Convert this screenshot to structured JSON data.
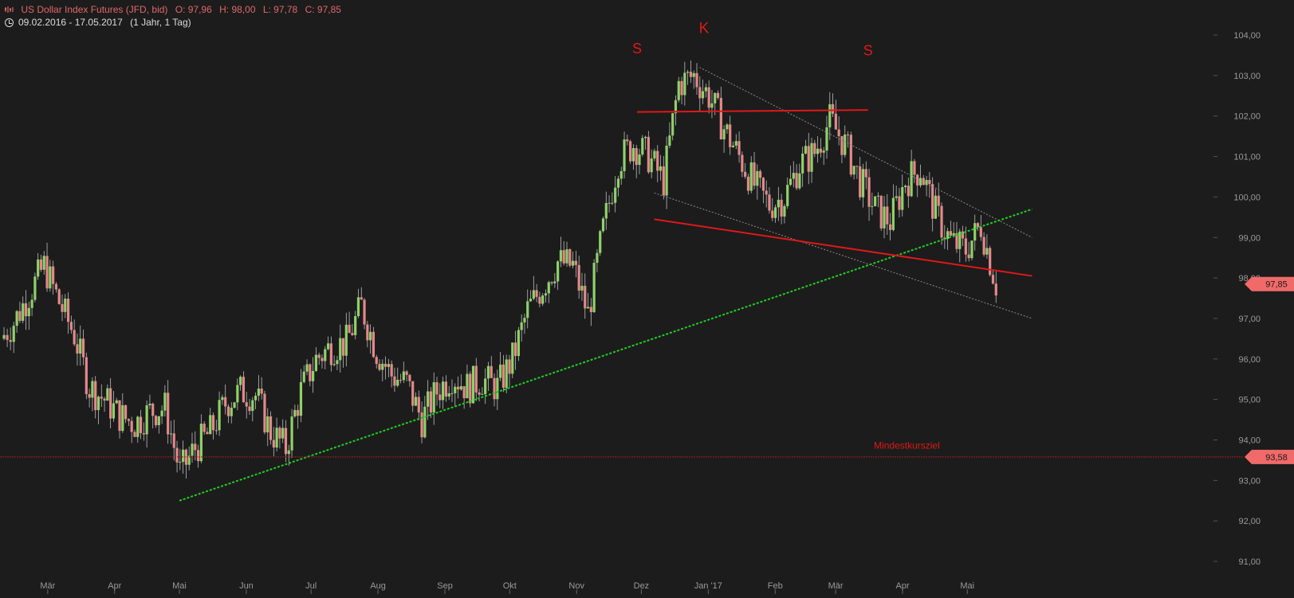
{
  "header": {
    "instrument": "US Dollar Index Futures (JFD, bid)",
    "ohlc": {
      "open": "O: 97,96",
      "high": "H: 98,00",
      "low": "L: 97,78",
      "close": "C: 97,85"
    },
    "date_range": "09.02.2016 - 17.05.2017",
    "period": "(1 Jahr, 1 Tag)"
  },
  "colors": {
    "background": "#1c1c1c",
    "up": "#8fd16a",
    "down": "#e38989",
    "wick": "#bdbdbd",
    "axis_text": "#9a9a9a",
    "red_line": "#e01818",
    "green_trend": "#22cc22",
    "grey_channel": "#8a8a8a"
  },
  "chart_data": {
    "type": "candlestick",
    "title": "US Dollar Index Futures (JFD, bid)",
    "ylim": [
      91,
      104.2
    ],
    "y_ticks": [
      "91,00",
      "92,00",
      "93,00",
      "94,00",
      "95,00",
      "96,00",
      "97,00",
      "98,00",
      "99,00",
      "100,00",
      "101,00",
      "102,00",
      "103,00",
      "104,00"
    ],
    "x_months": [
      {
        "label": "Mär",
        "date": "2016-03-01"
      },
      {
        "label": "Apr",
        "date": "2016-04-01"
      },
      {
        "label": "Mai",
        "date": "2016-05-01"
      },
      {
        "label": "Jun",
        "date": "2016-06-01"
      },
      {
        "label": "Jul",
        "date": "2016-07-01"
      },
      {
        "label": "Aug",
        "date": "2016-08-01"
      },
      {
        "label": "Sep",
        "date": "2016-09-01"
      },
      {
        "label": "Okt",
        "date": "2016-10-01"
      },
      {
        "label": "Nov",
        "date": "2016-11-01"
      },
      {
        "label": "Dez",
        "date": "2016-12-01"
      },
      {
        "label": "Jan '17",
        "date": "2017-01-01"
      },
      {
        "label": "Feb",
        "date": "2017-02-01"
      },
      {
        "label": "Mär",
        "date": "2017-03-01"
      },
      {
        "label": "Apr",
        "date": "2017-04-01"
      },
      {
        "label": "Mai",
        "date": "2017-05-01"
      }
    ],
    "closes": [
      [
        "2016-02-09",
        96.5
      ],
      [
        "2016-02-15",
        96.9
      ],
      [
        "2016-02-22",
        97.6
      ],
      [
        "2016-02-29",
        98.3
      ],
      [
        "2016-03-07",
        97.4
      ],
      [
        "2016-03-14",
        96.6
      ],
      [
        "2016-03-21",
        95.3
      ],
      [
        "2016-03-28",
        95.0
      ],
      [
        "2016-04-04",
        94.6
      ],
      [
        "2016-04-11",
        94.4
      ],
      [
        "2016-04-18",
        94.7
      ],
      [
        "2016-04-25",
        94.8
      ],
      [
        "2016-05-02",
        93.2
      ],
      [
        "2016-05-09",
        93.8
      ],
      [
        "2016-05-16",
        94.2
      ],
      [
        "2016-05-23",
        94.9
      ],
      [
        "2016-05-30",
        95.2
      ],
      [
        "2016-06-06",
        95.1
      ],
      [
        "2016-06-13",
        94.2
      ],
      [
        "2016-06-20",
        93.8
      ],
      [
        "2016-06-27",
        95.2
      ],
      [
        "2016-07-04",
        96.0
      ],
      [
        "2016-07-11",
        96.3
      ],
      [
        "2016-07-18",
        96.4
      ],
      [
        "2016-07-25",
        97.3
      ],
      [
        "2016-08-01",
        96.2
      ],
      [
        "2016-08-08",
        95.6
      ],
      [
        "2016-08-15",
        95.4
      ],
      [
        "2016-08-22",
        94.5
      ],
      [
        "2016-08-29",
        95.2
      ],
      [
        "2016-09-05",
        95.6
      ],
      [
        "2016-09-12",
        95.3
      ],
      [
        "2016-09-19",
        95.5
      ],
      [
        "2016-09-26",
        95.3
      ],
      [
        "2016-10-03",
        96.0
      ],
      [
        "2016-10-10",
        97.2
      ],
      [
        "2016-10-17",
        97.8
      ],
      [
        "2016-10-24",
        98.4
      ],
      [
        "2016-10-31",
        98.3
      ],
      [
        "2016-11-07",
        97.1
      ],
      [
        "2016-11-14",
        99.2
      ],
      [
        "2016-11-21",
        100.9
      ],
      [
        "2016-11-28",
        101.3
      ],
      [
        "2016-12-05",
        101.0
      ],
      [
        "2016-12-12",
        100.4
      ],
      [
        "2016-12-19",
        102.8
      ],
      [
        "2016-12-26",
        103.0
      ],
      [
        "2017-01-02",
        102.5
      ],
      [
        "2017-01-09",
        101.7
      ],
      [
        "2017-01-16",
        101.0
      ],
      [
        "2017-01-23",
        100.3
      ],
      [
        "2017-01-30",
        99.8
      ],
      [
        "2017-02-06",
        100.0
      ],
      [
        "2017-02-13",
        100.8
      ],
      [
        "2017-02-20",
        101.1
      ],
      [
        "2017-02-27",
        101.9
      ],
      [
        "2017-03-06",
        101.3
      ],
      [
        "2017-03-13",
        100.4
      ],
      [
        "2017-03-20",
        99.7
      ],
      [
        "2017-03-27",
        99.4
      ],
      [
        "2017-04-03",
        100.4
      ],
      [
        "2017-04-10",
        100.7
      ],
      [
        "2017-04-17",
        99.6
      ],
      [
        "2017-04-24",
        98.9
      ],
      [
        "2017-05-01",
        98.7
      ],
      [
        "2017-05-08",
        99.3
      ],
      [
        "2017-05-15",
        97.85
      ]
    ],
    "annotations": [
      {
        "label": "S",
        "role": "shoulder-left"
      },
      {
        "label": "K",
        "role": "head"
      },
      {
        "label": "S",
        "role": "shoulder-right"
      },
      {
        "label": "Mindestkursziel",
        "role": "target-label"
      }
    ],
    "price_labels": {
      "current": "97,85",
      "target": "93,58"
    },
    "lines": {
      "neckline": [
        [
          "2016-12-07",
          99.45
        ],
        [
          "2017-05-31",
          98.05
        ]
      ],
      "shoulder_top": [
        [
          "2016-11-29",
          102.1
        ],
        [
          "2017-03-16",
          102.15
        ]
      ],
      "green_support": [
        [
          "2016-05-01",
          92.5
        ],
        [
          "2017-05-31",
          99.7
        ]
      ],
      "grey_upper": [
        [
          "2016-12-28",
          103.2
        ],
        [
          "2017-05-31",
          99.0
        ]
      ],
      "grey_lower": [
        [
          "2016-12-07",
          100.1
        ],
        [
          "2017-05-31",
          97.0
        ]
      ],
      "target_level": 93.58
    }
  }
}
